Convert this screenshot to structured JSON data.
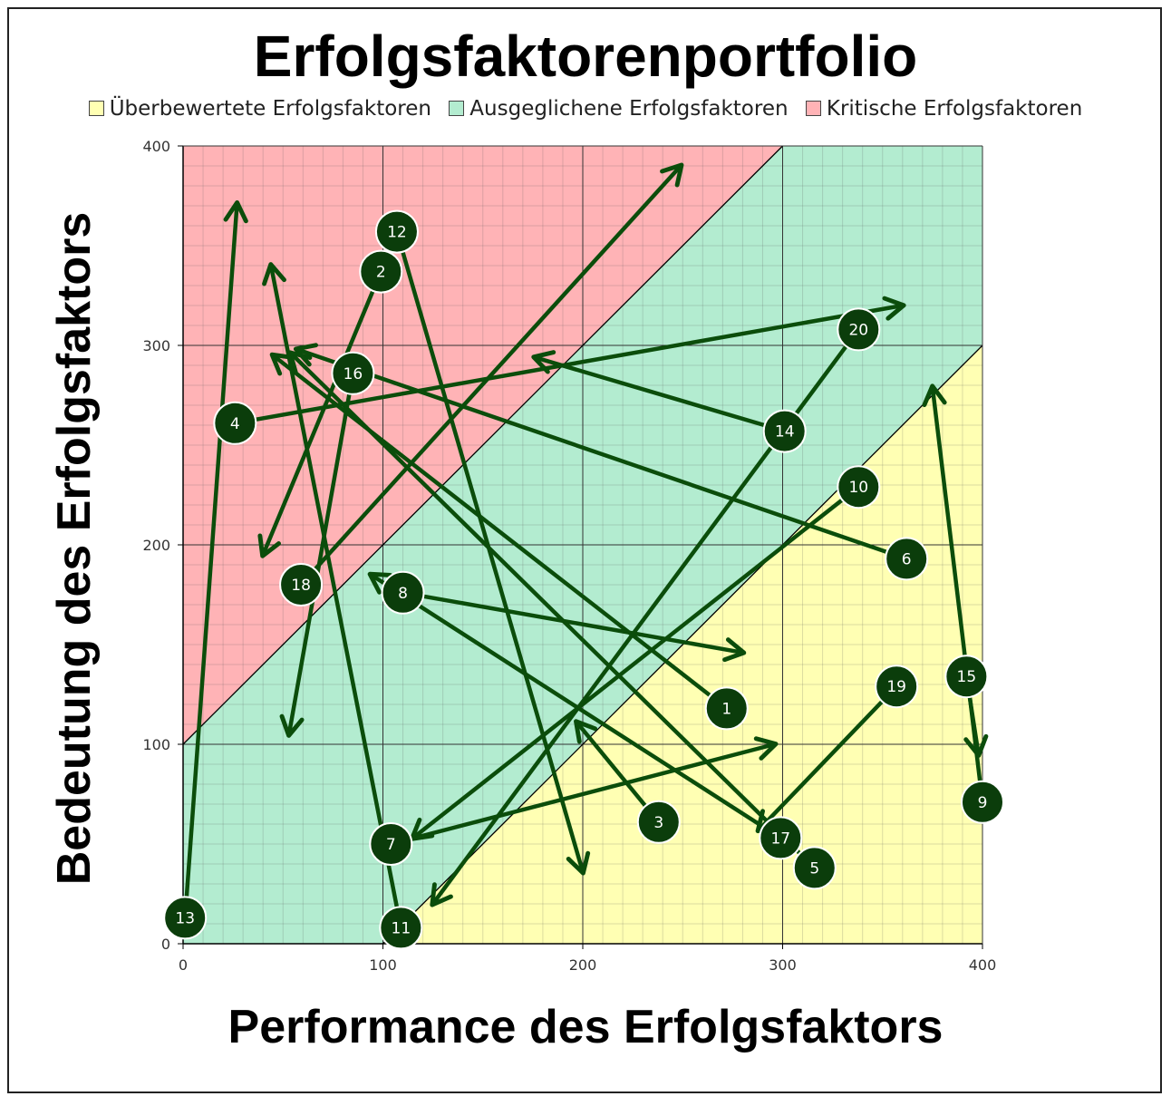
{
  "chart_data": {
    "type": "scatter",
    "title": "Erfolgsfaktorenportfolio",
    "xlabel": "Performance des Erfolgsfaktors",
    "ylabel": "Bedeutung des Erfolgsfaktors",
    "xlim": [
      0,
      400
    ],
    "ylim": [
      0,
      400
    ],
    "xticks": [
      "0",
      "100",
      "200",
      "300",
      "400"
    ],
    "yticks": [
      "0",
      "100",
      "200",
      "300",
      "400"
    ],
    "grid": true,
    "legend_position": "top",
    "regions": [
      {
        "name": "Überbewertete Erfolgsfaktoren",
        "color": "#ffffb3",
        "boundary": "y < x - 100"
      },
      {
        "name": "Ausgeglichene Erfolgsfaktoren",
        "color": "#b3ecd0",
        "boundary": "x - 100 <= y <= x + 100"
      },
      {
        "name": "Kritische Erfolgsfaktoren",
        "color": "#ffb3b6",
        "boundary": "y > x + 100"
      }
    ],
    "marker_color": "#0b3d0b",
    "arrow_color": "#0b4d0b",
    "points": [
      {
        "label": "1",
        "x": 272,
        "y": 118,
        "to_x": 45,
        "to_y": 295
      },
      {
        "label": "2",
        "x": 99,
        "y": 337,
        "to_x": 40,
        "to_y": 195
      },
      {
        "label": "3",
        "x": 238,
        "y": 61,
        "to_x": 197,
        "to_y": 111
      },
      {
        "label": "4",
        "x": 26,
        "y": 261,
        "to_x": 360,
        "to_y": 320
      },
      {
        "label": "5",
        "x": 316,
        "y": 38,
        "to_x": 54,
        "to_y": 296
      },
      {
        "label": "6",
        "x": 362,
        "y": 193,
        "to_x": 57,
        "to_y": 298
      },
      {
        "label": "7",
        "x": 104,
        "y": 50,
        "to_x": 296,
        "to_y": 100
      },
      {
        "label": "8",
        "x": 110,
        "y": 176,
        "to_x": 280,
        "to_y": 146
      },
      {
        "label": "9",
        "x": 400,
        "y": 71,
        "to_x": 375,
        "to_y": 279
      },
      {
        "label": "10",
        "x": 338,
        "y": 229,
        "to_x": 115,
        "to_y": 53
      },
      {
        "label": "11",
        "x": 109,
        "y": 8,
        "to_x": 44,
        "to_y": 340
      },
      {
        "label": "12",
        "x": 107,
        "y": 357,
        "to_x": 200,
        "to_y": 36
      },
      {
        "label": "13",
        "x": 1,
        "y": 13,
        "to_x": 27,
        "to_y": 371
      },
      {
        "label": "14",
        "x": 301,
        "y": 257,
        "to_x": 176,
        "to_y": 294
      },
      {
        "label": "15",
        "x": 392,
        "y": 134,
        "to_x": 398,
        "to_y": 95
      },
      {
        "label": "16",
        "x": 85,
        "y": 286,
        "to_x": 53,
        "to_y": 105
      },
      {
        "label": "17",
        "x": 299,
        "y": 53,
        "to_x": 94,
        "to_y": 185
      },
      {
        "label": "18",
        "x": 59,
        "y": 180,
        "to_x": 249,
        "to_y": 390
      },
      {
        "label": "19",
        "x": 357,
        "y": 129,
        "to_x": 288,
        "to_y": 57
      },
      {
        "label": "20",
        "x": 338,
        "y": 308,
        "to_x": 125,
        "to_y": 20
      }
    ]
  }
}
